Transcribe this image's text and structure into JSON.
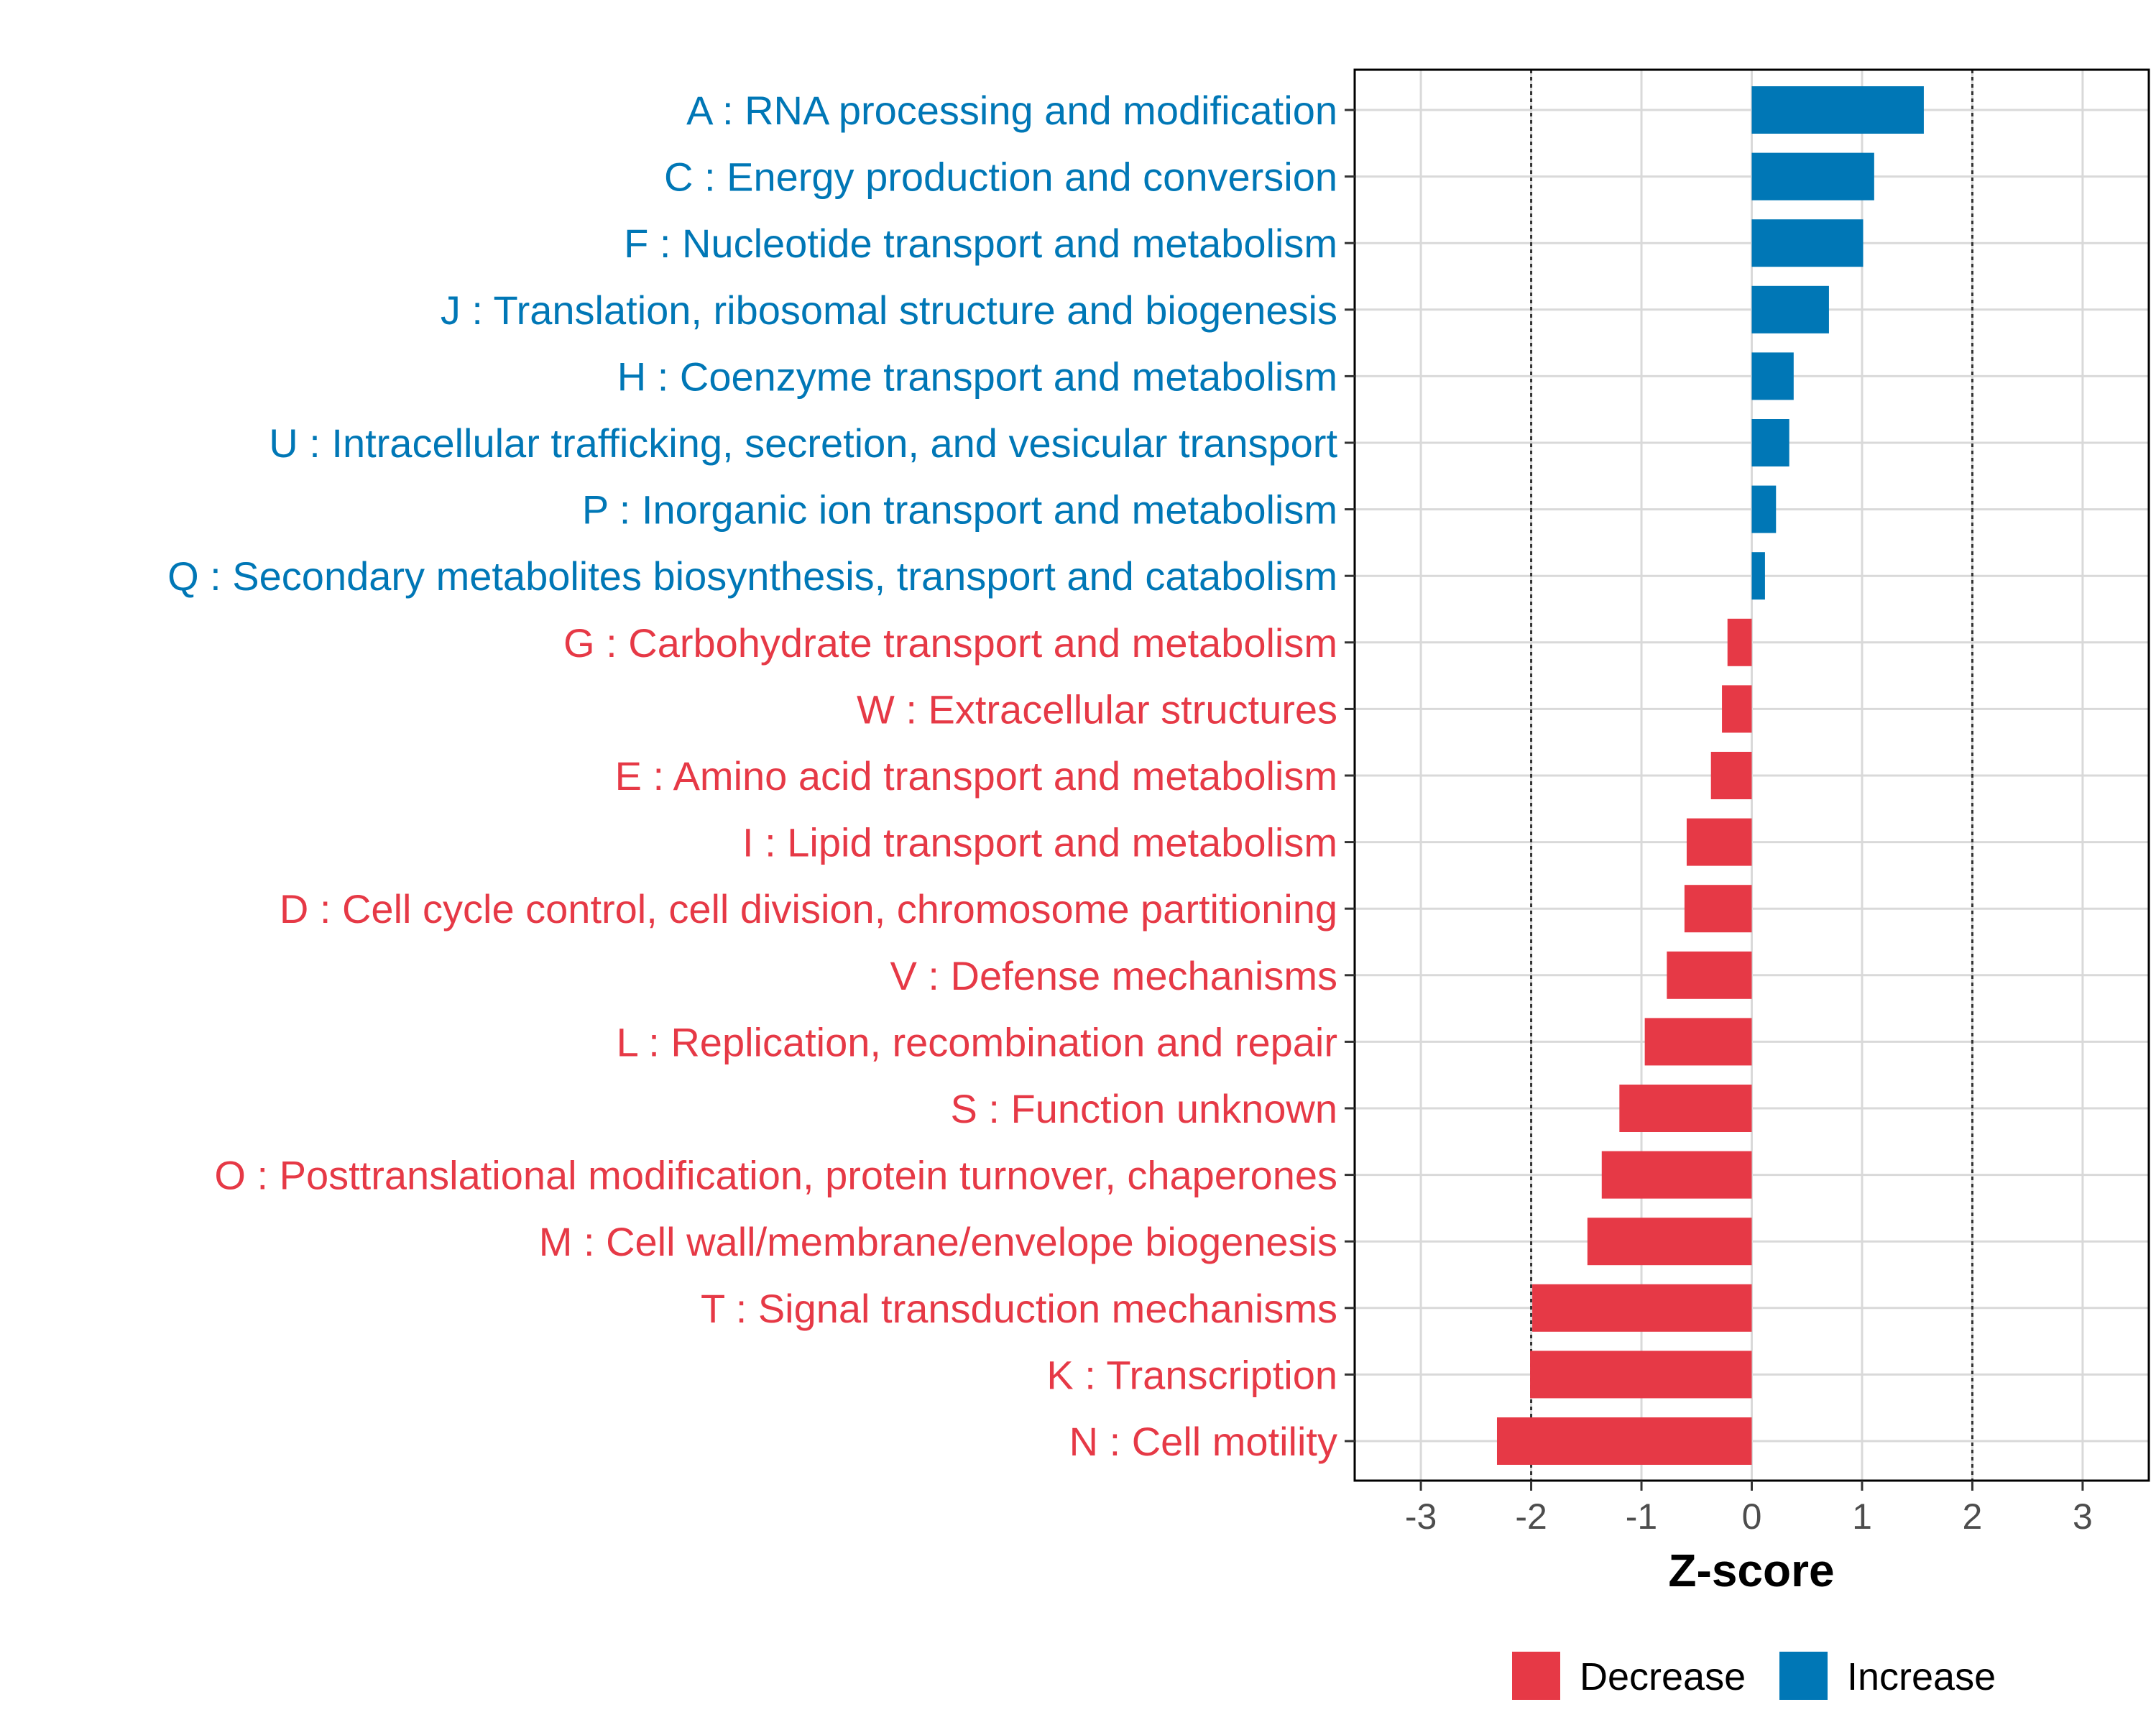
{
  "chart_data": {
    "type": "bar",
    "orientation": "horizontal",
    "title": "",
    "xlabel": "Z-score",
    "ylabel": "",
    "xlim": [
      -3.6,
      3.6
    ],
    "x_ticks": [
      -3,
      -2,
      -1,
      0,
      1,
      2,
      3
    ],
    "x_tick_labels": [
      "-3",
      "-2",
      "-1",
      "0",
      "1",
      "2",
      "3"
    ],
    "reference_lines": [
      -2,
      2
    ],
    "grid": true,
    "legend_position": "bottom",
    "colors": {
      "Decrease": "#E63946",
      "Increase": "#0077B6"
    },
    "legend": [
      {
        "label": "Decrease",
        "color_key": "Decrease"
      },
      {
        "label": "Increase",
        "color_key": "Increase"
      }
    ],
    "categories": [
      {
        "label": "A : RNA processing and modification",
        "value": 1.56,
        "group": "Increase"
      },
      {
        "label": "C : Energy production and conversion",
        "value": 1.11,
        "group": "Increase"
      },
      {
        "label": "F : Nucleotide transport and metabolism",
        "value": 1.01,
        "group": "Increase"
      },
      {
        "label": "J : Translation, ribosomal structure and biogenesis",
        "value": 0.7,
        "group": "Increase"
      },
      {
        "label": "H : Coenzyme transport and metabolism",
        "value": 0.38,
        "group": "Increase"
      },
      {
        "label": "U : Intracellular trafficking, secretion, and vesicular transport",
        "value": 0.34,
        "group": "Increase"
      },
      {
        "label": "P : Inorganic ion transport and metabolism",
        "value": 0.22,
        "group": "Increase"
      },
      {
        "label": "Q : Secondary metabolites biosynthesis, transport and catabolism",
        "value": 0.12,
        "group": "Increase"
      },
      {
        "label": "G : Carbohydrate transport and metabolism",
        "value": -0.22,
        "group": "Decrease"
      },
      {
        "label": "W : Extracellular structures",
        "value": -0.27,
        "group": "Decrease"
      },
      {
        "label": "E : Amino acid transport and metabolism",
        "value": -0.37,
        "group": "Decrease"
      },
      {
        "label": "I : Lipid transport and metabolism",
        "value": -0.59,
        "group": "Decrease"
      },
      {
        "label": "D : Cell cycle control, cell division, chromosome partitioning",
        "value": -0.61,
        "group": "Decrease"
      },
      {
        "label": "V : Defense mechanisms",
        "value": -0.77,
        "group": "Decrease"
      },
      {
        "label": "L : Replication, recombination and repair",
        "value": -0.97,
        "group": "Decrease"
      },
      {
        "label": "S : Function unknown",
        "value": -1.2,
        "group": "Decrease"
      },
      {
        "label": "O : Posttranslational modification, protein turnover, chaperones",
        "value": -1.36,
        "group": "Decrease"
      },
      {
        "label": "M : Cell wall/membrane/envelope biogenesis",
        "value": -1.49,
        "group": "Decrease"
      },
      {
        "label": "T : Signal transduction mechanisms",
        "value": -1.99,
        "group": "Decrease"
      },
      {
        "label": "K : Transcription",
        "value": -2.01,
        "group": "Decrease"
      },
      {
        "label": "N : Cell motility",
        "value": -2.31,
        "group": "Decrease"
      }
    ]
  }
}
